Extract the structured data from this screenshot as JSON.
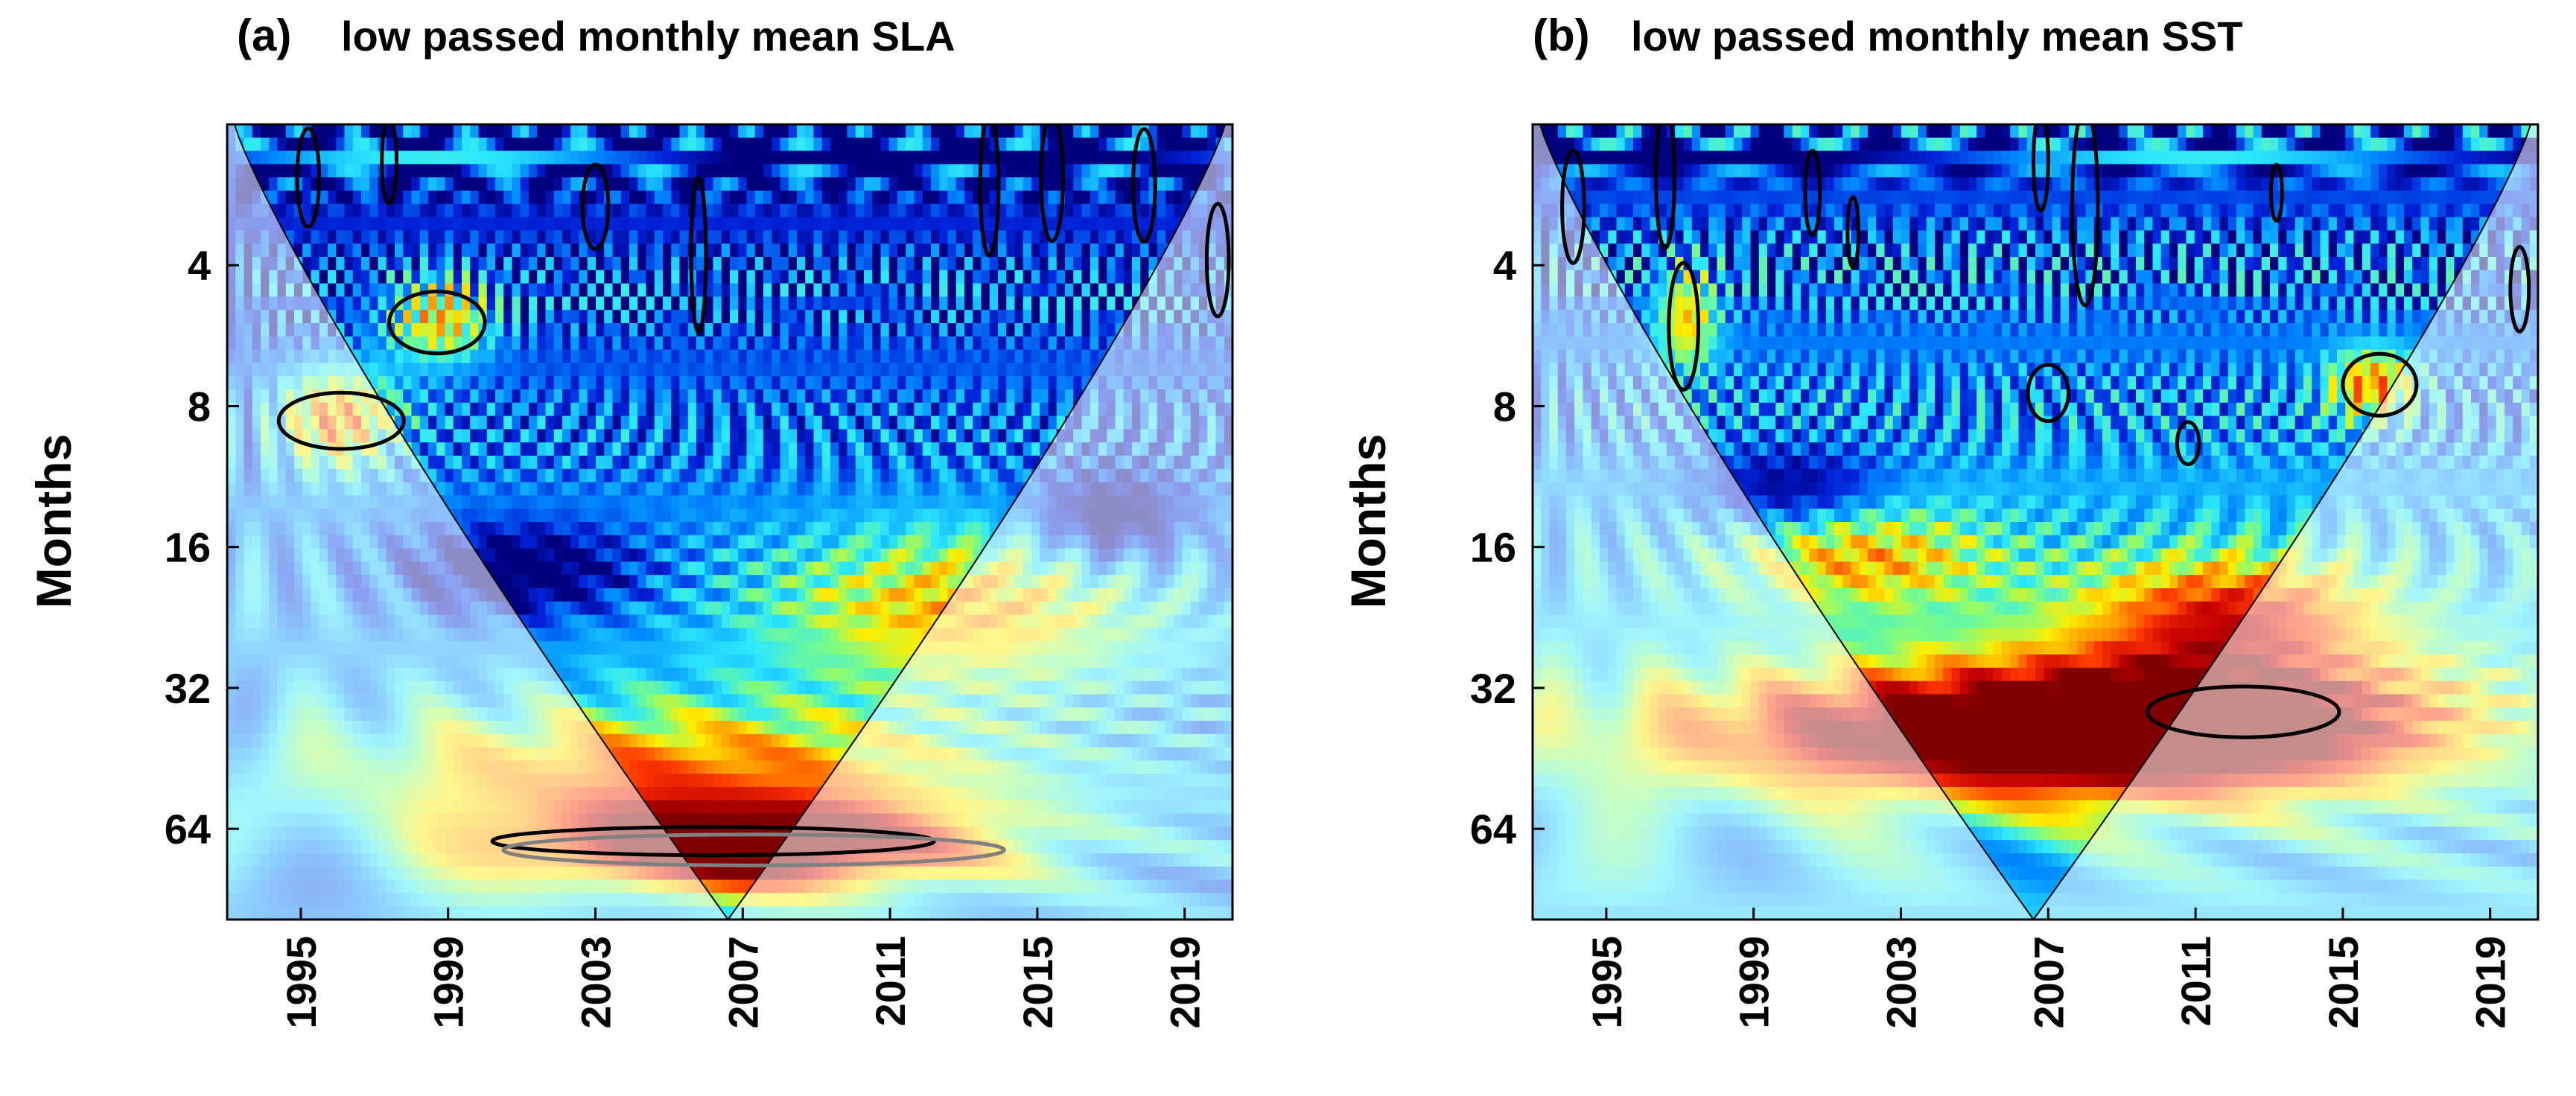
{
  "chart_data": [
    {
      "type": "heatmap",
      "panel_label": "(a)",
      "title": "low passed monthly mean SLA",
      "ylabel": "Months",
      "xlabel": "",
      "x_tick_labels": [
        "1995",
        "1999",
        "2003",
        "2007",
        "2011",
        "2015",
        "2019"
      ],
      "x_ticks": [
        1995,
        1999,
        2003,
        2007,
        2011,
        2015,
        2019
      ],
      "xlim": [
        1993,
        2020.3
      ],
      "y_tick_labels": [
        "4",
        "8",
        "16",
        "32",
        "64"
      ],
      "y_ticks": [
        4,
        8,
        16,
        32,
        64
      ],
      "ylim": [
        2,
        100
      ],
      "y_scale": "log2",
      "colormap": [
        "#00007f",
        "#0022d8",
        "#0088ff",
        "#2be7ff",
        "#7dfc81",
        "#ffee00",
        "#ff9c00",
        "#ff3700",
        "#c30000",
        "#7f0000"
      ],
      "background_level": 0.25,
      "hotspots": [
        {
          "year": 2007,
          "period": 70,
          "dyear": 6.5,
          "dlog": 0.32,
          "amp": 0.88
        },
        {
          "year": 2005,
          "period": 48,
          "dyear": 9.0,
          "dlog": 0.45,
          "amp": 0.45
        },
        {
          "year": 2013,
          "period": 22,
          "dyear": 5.0,
          "dlog": 0.55,
          "amp": 0.38
        },
        {
          "year": 1996,
          "period": 8.5,
          "dyear": 1.6,
          "dlog": 0.35,
          "amp": 0.5
        },
        {
          "year": 1998.8,
          "period": 5.2,
          "dyear": 1.4,
          "dlog": 0.3,
          "amp": 0.45
        },
        {
          "year": 2001,
          "period": 18,
          "dyear": 3.0,
          "dlog": 0.3,
          "amp": -0.35
        },
        {
          "year": 2017,
          "period": 14,
          "dyear": 2.0,
          "dlog": 0.35,
          "amp": -0.3
        }
      ],
      "significance_contours": [
        {
          "center": [
            2006.2,
            68
          ],
          "ryears": 6.0,
          "rlog": 0.1,
          "color": "#000000"
        },
        {
          "center": [
            2007.3,
            71
          ],
          "ryears": 6.8,
          "rlog": 0.11,
          "color": "#808080"
        },
        {
          "center": [
            1996.1,
            8.6
          ],
          "ryears": 1.7,
          "rlog": 0.2,
          "color": "#000000"
        },
        {
          "center": [
            1998.7,
            5.3
          ],
          "ryears": 1.3,
          "rlog": 0.22,
          "color": "#000000"
        },
        {
          "center": [
            1995.2,
            2.6
          ],
          "ryears": 0.3,
          "rlog": 0.35,
          "color": "#000000"
        },
        {
          "center": [
            1997.4,
            2.4
          ],
          "ryears": 0.2,
          "rlog": 0.3,
          "color": "#000000"
        },
        {
          "center": [
            2003.0,
            3.0
          ],
          "ryears": 0.35,
          "rlog": 0.3,
          "color": "#000000"
        },
        {
          "center": [
            2005.8,
            3.8
          ],
          "ryears": 0.2,
          "rlog": 0.55,
          "color": "#000000"
        },
        {
          "center": [
            2013.7,
            2.7
          ],
          "ryears": 0.25,
          "rlog": 0.5,
          "color": "#000000"
        },
        {
          "center": [
            2015.4,
            2.6
          ],
          "ryears": 0.3,
          "rlog": 0.45,
          "color": "#000000"
        },
        {
          "center": [
            2017.9,
            2.7
          ],
          "ryears": 0.3,
          "rlog": 0.4,
          "color": "#000000"
        },
        {
          "center": [
            2019.9,
            3.9
          ],
          "ryears": 0.3,
          "rlog": 0.4,
          "color": "#000000"
        }
      ],
      "cone_of_influence": {
        "center_year": 2006.6,
        "edge_years": [
          1993.2,
          2020.1
        ],
        "edge_period": 2,
        "apex_period": 100
      }
    },
    {
      "type": "heatmap",
      "panel_label": "(b)",
      "title": "low passed monthly mean  SST",
      "ylabel": "Months",
      "xlabel": "",
      "x_tick_labels": [
        "1995",
        "1999",
        "2003",
        "2007",
        "2011",
        "2015",
        "2019"
      ],
      "x_ticks": [
        1995,
        1999,
        2003,
        2007,
        2011,
        2015,
        2019
      ],
      "xlim": [
        1993,
        2020.3
      ],
      "y_tick_labels": [
        "4",
        "8",
        "16",
        "32",
        "64"
      ],
      "y_ticks": [
        4,
        8,
        16,
        32,
        64
      ],
      "ylim": [
        2,
        100
      ],
      "y_scale": "log2",
      "colormap": [
        "#00007f",
        "#0022d8",
        "#0088ff",
        "#2be7ff",
        "#7dfc81",
        "#ffee00",
        "#ff9c00",
        "#ff3700",
        "#c30000",
        "#7f0000"
      ],
      "background_level": 0.3,
      "hotspots": [
        {
          "year": 2011,
          "period": 38,
          "dyear": 7.0,
          "dlog": 0.5,
          "amp": 0.8
        },
        {
          "year": 2004,
          "period": 40,
          "dyear": 9.0,
          "dlog": 0.45,
          "amp": 0.6
        },
        {
          "year": 2012,
          "period": 22,
          "dyear": 4.0,
          "dlog": 0.4,
          "amp": 0.5
        },
        {
          "year": 2002,
          "period": 17,
          "dyear": 3.5,
          "dlog": 0.35,
          "amp": 0.35
        },
        {
          "year": 1997.2,
          "period": 5.2,
          "dyear": 0.8,
          "dlog": 0.35,
          "amp": 0.4
        },
        {
          "year": 2015.8,
          "period": 7.2,
          "dyear": 1.2,
          "dlog": 0.25,
          "amp": 0.45
        },
        {
          "year": 2000,
          "period": 12,
          "dyear": 2.5,
          "dlog": 0.3,
          "amp": -0.25
        }
      ],
      "significance_contours": [
        {
          "center": [
            2012.3,
            36
          ],
          "ryears": 2.6,
          "rlog": 0.18,
          "color": "#000000"
        },
        {
          "center": [
            1997.1,
            5.4
          ],
          "ryears": 0.4,
          "rlog": 0.45,
          "color": "#000000"
        },
        {
          "center": [
            2007.0,
            7.5
          ],
          "ryears": 0.55,
          "rlog": 0.2,
          "color": "#000000"
        },
        {
          "center": [
            2010.8,
            9.6
          ],
          "ryears": 0.3,
          "rlog": 0.15,
          "color": "#000000"
        },
        {
          "center": [
            2016.0,
            7.2
          ],
          "ryears": 1.0,
          "rlog": 0.22,
          "color": "#000000"
        },
        {
          "center": [
            1994.1,
            3.0
          ],
          "ryears": 0.3,
          "rlog": 0.4,
          "color": "#000000"
        },
        {
          "center": [
            1996.6,
            2.6
          ],
          "ryears": 0.25,
          "rlog": 0.5,
          "color": "#000000"
        },
        {
          "center": [
            2000.6,
            2.8
          ],
          "ryears": 0.2,
          "rlog": 0.3,
          "color": "#000000"
        },
        {
          "center": [
            2001.7,
            3.4
          ],
          "ryears": 0.15,
          "rlog": 0.25,
          "color": "#000000"
        },
        {
          "center": [
            2006.8,
            2.4
          ],
          "ryears": 0.2,
          "rlog": 0.35,
          "color": "#000000"
        },
        {
          "center": [
            2008.0,
            3.0
          ],
          "ryears": 0.35,
          "rlog": 0.7,
          "color": "#000000"
        },
        {
          "center": [
            2013.2,
            2.8
          ],
          "ryears": 0.15,
          "rlog": 0.2,
          "color": "#000000"
        },
        {
          "center": [
            2019.8,
            4.5
          ],
          "ryears": 0.25,
          "rlog": 0.3,
          "color": "#000000"
        }
      ],
      "cone_of_influence": {
        "center_year": 2006.6,
        "edge_years": [
          1993.2,
          2020.1
        ],
        "edge_period": 2,
        "apex_period": 100
      }
    }
  ]
}
